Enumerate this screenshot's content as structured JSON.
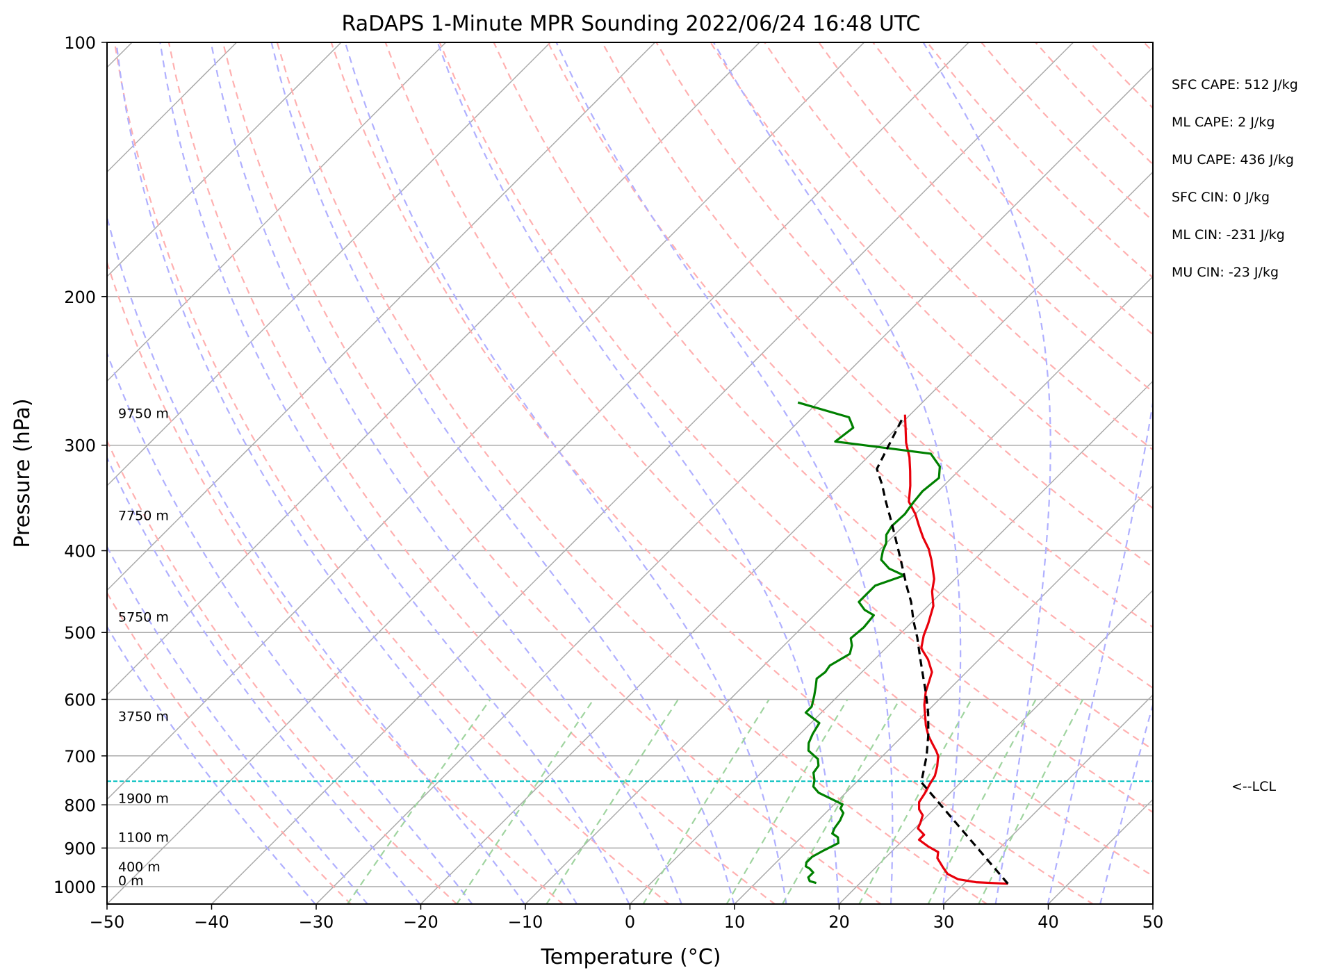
{
  "chart_data": {
    "type": "line",
    "subtype": "skew-T log-p",
    "title": "RaDAPS 1-Minute MPR Sounding 2022/06/24 16:48 UTC",
    "xlabel": "Temperature (°C)",
    "ylabel": "Pressure (hPa)",
    "xlim": [
      -50,
      50
    ],
    "ylim": [
      1050,
      100
    ],
    "y_scale": "log",
    "grid": true,
    "x_ticks": [
      "−50",
      "−40",
      "−30",
      "−20",
      "−10",
      "0",
      "10",
      "20",
      "30",
      "40",
      "50"
    ],
    "x_tick_values": [
      -50,
      -40,
      -30,
      -20,
      -10,
      0,
      10,
      20,
      30,
      40,
      50
    ],
    "y_ticks": [
      "100",
      "200",
      "300",
      "400",
      "500",
      "600",
      "700",
      "800",
      "900",
      "1000"
    ],
    "y_tick_values": [
      100,
      200,
      300,
      400,
      500,
      600,
      700,
      800,
      900,
      1000
    ],
    "colors": {
      "temperature": "#e8000b",
      "dewpoint": "#008000",
      "parcel": "#000000",
      "lcl_line": "#00bfbf",
      "isotherms": "#a9a9a9",
      "dry_adiabats": "#ffb0b0",
      "moist_adiabats": "#b0b0ff",
      "mixing_ratio": "#9fd49f"
    },
    "series": [
      {
        "key": "temperature",
        "points": [
          [
            34.2,
            992
          ],
          [
            31,
            988
          ],
          [
            29,
            980
          ],
          [
            27.5,
            966
          ],
          [
            26.5,
            950
          ],
          [
            25,
            925
          ],
          [
            24.5,
            910
          ],
          [
            23,
            896
          ],
          [
            21.5,
            880
          ],
          [
            21.5,
            868
          ],
          [
            20.3,
            853
          ],
          [
            20,
            840
          ],
          [
            19.5,
            823
          ],
          [
            18.6,
            810
          ],
          [
            17.9,
            794
          ],
          [
            17.6,
            775
          ],
          [
            17.2,
            756
          ],
          [
            16.9,
            739
          ],
          [
            16.2,
            720
          ],
          [
            15.3,
            700
          ],
          [
            14.6,
            690
          ],
          [
            13.5,
            676
          ],
          [
            12.4,
            662
          ],
          [
            11.2,
            644
          ],
          [
            10.2,
            627
          ],
          [
            9.1,
            609
          ],
          [
            8,
            588
          ],
          [
            7.3,
            571
          ],
          [
            6.7,
            557
          ],
          [
            5.1,
            538
          ],
          [
            3.4,
            522
          ],
          [
            2.4,
            504
          ],
          [
            1.7,
            488
          ],
          [
            0.5,
            465
          ],
          [
            -1,
            447
          ],
          [
            -2,
            432
          ],
          [
            -4,
            411
          ],
          [
            -5.4,
            398
          ],
          [
            -7,
            386
          ],
          [
            -8.5,
            374
          ],
          [
            -10,
            362
          ],
          [
            -11.8,
            350
          ],
          [
            -13.2,
            335
          ],
          [
            -14.6,
            322
          ],
          [
            -16,
            310
          ],
          [
            -17.7,
            298
          ],
          [
            -19.2,
            286
          ],
          [
            -20.5,
            276
          ]
        ]
      },
      {
        "key": "dewpoint",
        "points": [
          [
            15.8,
            990
          ],
          [
            15,
            985
          ],
          [
            14.5,
            975
          ],
          [
            14.5,
            962
          ],
          [
            13.8,
            952
          ],
          [
            13.2,
            946
          ],
          [
            12.9,
            936
          ],
          [
            12.9,
            922
          ],
          [
            13.4,
            906
          ],
          [
            14.1,
            888
          ],
          [
            13.5,
            874
          ],
          [
            12.6,
            865
          ],
          [
            12.3,
            852
          ],
          [
            12.1,
            835
          ],
          [
            11.7,
            818
          ],
          [
            11,
            808
          ],
          [
            10.8,
            799
          ],
          [
            7.4,
            774
          ],
          [
            6.3,
            761
          ],
          [
            5.8,
            748
          ],
          [
            5,
            733
          ],
          [
            4.8,
            719
          ],
          [
            4.1,
            706
          ],
          [
            2.4,
            690
          ],
          [
            1.7,
            676
          ],
          [
            1.2,
            659
          ],
          [
            0.8,
            640
          ],
          [
            -1.5,
            622
          ],
          [
            -1.5,
            612
          ],
          [
            -2.3,
            594
          ],
          [
            -3,
            580
          ],
          [
            -3.7,
            567
          ],
          [
            -3.5,
            557
          ],
          [
            -3.7,
            547
          ],
          [
            -2.9,
            530
          ],
          [
            -3.5,
            518
          ],
          [
            -4.3,
            508
          ],
          [
            -4.1,
            493
          ],
          [
            -4.3,
            477
          ],
          [
            -5.7,
            470
          ],
          [
            -7,
            460
          ],
          [
            -7,
            451
          ],
          [
            -7,
            440
          ],
          [
            -5.2,
            428
          ],
          [
            -7.3,
            420
          ],
          [
            -8.9,
            410
          ],
          [
            -9.6,
            400
          ],
          [
            -10,
            392
          ],
          [
            -10.8,
            383
          ],
          [
            -11.1,
            374
          ],
          [
            -11,
            362
          ],
          [
            -11.3,
            351
          ],
          [
            -11.5,
            340
          ],
          [
            -11.2,
            328
          ],
          [
            -12.2,
            318
          ],
          [
            -14.3,
            307
          ],
          [
            -24.6,
            297
          ],
          [
            -24.2,
            286
          ],
          [
            -25.6,
            278
          ],
          [
            -31.9,
            267
          ]
        ]
      },
      {
        "key": "parcel",
        "points": [
          [
            34.2,
            992
          ],
          [
            16.2,
            752
          ],
          [
            15.3,
            728
          ],
          [
            14.2,
            700
          ],
          [
            12.3,
            660
          ],
          [
            10.2,
            622
          ],
          [
            8,
            588
          ],
          [
            6,
            560
          ],
          [
            4,
            533
          ],
          [
            2,
            507
          ],
          [
            0,
            484
          ],
          [
            -2,
            460
          ],
          [
            -4,
            440
          ],
          [
            -6,
            420
          ],
          [
            -8,
            401
          ],
          [
            -10,
            383
          ],
          [
            -12,
            366
          ],
          [
            -14,
            350
          ],
          [
            -16,
            334
          ],
          [
            -18,
            320
          ],
          [
            -20.5,
            277
          ]
        ]
      }
    ],
    "height_labels": [
      "9750 m",
      "7750 m",
      "5750 m",
      "3750 m",
      "1900 m",
      "1100 m",
      "400 m",
      "0 m"
    ],
    "height_pressures": [
      280,
      370,
      488,
      640,
      800,
      890,
      965,
      1002
    ],
    "lcl_pressure": 750,
    "lcl_label": "<--LCL",
    "stats": [
      "SFC CAPE: 512 J/kg",
      "ML CAPE: 2 J/kg",
      "MU CAPE: 436 J/kg",
      "SFC CIN: 0 J/kg",
      "ML CIN: -231 J/kg",
      "MU CIN: -23 J/kg"
    ]
  }
}
